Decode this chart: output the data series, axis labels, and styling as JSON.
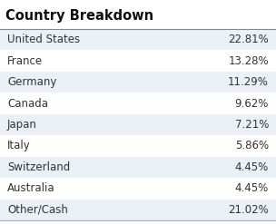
{
  "title": "Country Breakdown",
  "rows": [
    {
      "country": "United States",
      "value": "22.81%"
    },
    {
      "country": "France",
      "value": "13.28%"
    },
    {
      "country": "Germany",
      "value": "11.29%"
    },
    {
      "country": "Canada",
      "value": "9.62%"
    },
    {
      "country": "Japan",
      "value": "7.21%"
    },
    {
      "country": "Italy",
      "value": "5.86%"
    },
    {
      "country": "Switzerland",
      "value": "4.45%"
    },
    {
      "country": "Australia",
      "value": "4.45%"
    },
    {
      "country": "Other/Cash",
      "value": "21.02%"
    }
  ],
  "title_bg": "#ffffff",
  "row_color_odd": "#eaf0f6",
  "row_color_even": "#ffffff",
  "title_fontsize": 10.5,
  "row_fontsize": 8.5,
  "title_color": "#111111",
  "text_color": "#333333",
  "line_color": "#888888",
  "bottom_line_color": "#aaaaaa",
  "fig_bg": "#ffffff"
}
